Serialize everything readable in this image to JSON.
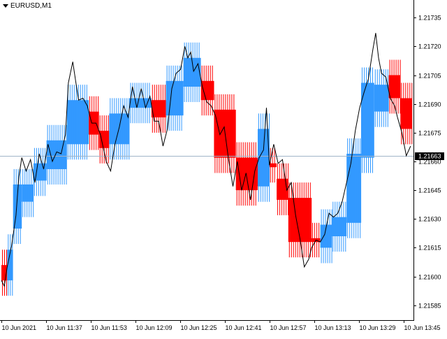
{
  "window": {
    "symbol_label": "EURUSD,M1",
    "menu_icon": "triangle-down-icon"
  },
  "colors": {
    "up": "#3399ff",
    "down": "#ff0000",
    "price_line": "#000000",
    "current_line": "#a0b4c8",
    "background": "#ffffff",
    "axis": "#000000"
  },
  "current_price": {
    "value": 1.21663,
    "label": "1.21663"
  },
  "price_axis": {
    "ticks": [
      1.21735,
      1.2172,
      1.21705,
      1.2169,
      1.21675,
      1.2166,
      1.21645,
      1.2163,
      1.21615,
      1.216,
      1.21585
    ],
    "tick_labels": [
      "1.21735",
      "1.21720",
      "1.21705",
      "1.21690",
      "1.21675",
      "1.21660",
      "1.21645",
      "1.21630",
      "1.21615",
      "1.21600",
      "1.21585"
    ]
  },
  "time_axis": {
    "labels": [
      "10 Jun 2021",
      "10 Jun 11:37",
      "10 Jun 11:53",
      "10 Jun 12:09",
      "10 Jun 12:25",
      "10 Jun 12:41",
      "10 Jun 12:57",
      "10 Jun 13:13",
      "10 Jun 13:29",
      "10 Jun 13:45"
    ]
  },
  "chart_data": {
    "type": "line",
    "x_unit": "bar index (1-minute bars)",
    "y_unit": "EURUSD price",
    "ylim": [
      1.21578,
      1.21742
    ],
    "renko_blocks": [
      {
        "from": 0,
        "to": 4,
        "open": 1.21606,
        "close": 1.21598,
        "dir": "down"
      },
      {
        "from": 4,
        "to": 8,
        "open": 1.21598,
        "close": 1.21614,
        "dir": "up"
      },
      {
        "from": 8,
        "to": 14,
        "open": 1.21625,
        "close": 1.21648,
        "dir": "up"
      },
      {
        "from": 14,
        "to": 22,
        "open": 1.21639,
        "close": 1.21648,
        "dir": "up"
      },
      {
        "from": 22,
        "to": 31,
        "open": 1.2165,
        "close": 1.21659,
        "dir": "up"
      },
      {
        "from": 31,
        "to": 45,
        "open": 1.21656,
        "close": 1.21671,
        "dir": "up"
      },
      {
        "from": 45,
        "to": 60,
        "open": 1.21669,
        "close": 1.21692,
        "dir": "up"
      },
      {
        "from": 60,
        "to": 67,
        "open": 1.21686,
        "close": 1.21674,
        "dir": "down"
      },
      {
        "from": 67,
        "to": 74,
        "open": 1.21676,
        "close": 1.21667,
        "dir": "down"
      },
      {
        "from": 74,
        "to": 88,
        "open": 1.21669,
        "close": 1.21685,
        "dir": "up"
      },
      {
        "from": 88,
        "to": 103,
        "open": 1.21688,
        "close": 1.21693,
        "dir": "up"
      },
      {
        "from": 103,
        "to": 113,
        "open": 1.21692,
        "close": 1.21683,
        "dir": "down"
      },
      {
        "from": 113,
        "to": 125,
        "open": 1.21684,
        "close": 1.21702,
        "dir": "up"
      },
      {
        "from": 125,
        "to": 137,
        "open": 1.21699,
        "close": 1.21714,
        "dir": "up"
      },
      {
        "from": 137,
        "to": 146,
        "open": 1.21702,
        "close": 1.21692,
        "dir": "down"
      },
      {
        "from": 146,
        "to": 161,
        "open": 1.21687,
        "close": 1.21662,
        "dir": "down"
      },
      {
        "from": 161,
        "to": 176,
        "open": 1.21662,
        "close": 1.21645,
        "dir": "down"
      },
      {
        "from": 176,
        "to": 184,
        "open": 1.21647,
        "close": 1.21677,
        "dir": "up"
      },
      {
        "from": 184,
        "to": 189,
        "open": 1.21659,
        "close": 1.21657,
        "dir": "down"
      },
      {
        "from": 189,
        "to": 197,
        "open": 1.21651,
        "close": 1.2164,
        "dir": "down"
      },
      {
        "from": 197,
        "to": 213,
        "open": 1.21641,
        "close": 1.21618,
        "dir": "down"
      },
      {
        "from": 213,
        "to": 219,
        "open": 1.2162,
        "close": 1.21618,
        "dir": "down"
      },
      {
        "from": 219,
        "to": 227,
        "open": 1.21615,
        "close": 1.21627,
        "dir": "up"
      },
      {
        "from": 227,
        "to": 237,
        "open": 1.21621,
        "close": 1.21631,
        "dir": "up"
      },
      {
        "from": 237,
        "to": 247,
        "open": 1.21628,
        "close": 1.21664,
        "dir": "up"
      },
      {
        "from": 247,
        "to": 256,
        "open": 1.21662,
        "close": 1.21701,
        "dir": "up"
      },
      {
        "from": 256,
        "to": 266,
        "open": 1.21686,
        "close": 1.217,
        "dir": "up"
      },
      {
        "from": 266,
        "to": 274,
        "open": 1.21705,
        "close": 1.21693,
        "dir": "down"
      },
      {
        "from": 274,
        "to": 282,
        "open": 1.21693,
        "close": 1.21677,
        "dir": "down"
      }
    ],
    "price_line": [
      {
        "x": 0,
        "y": 1.21598
      },
      {
        "x": 2,
        "y": 1.21595
      },
      {
        "x": 4,
        "y": 1.21605
      },
      {
        "x": 7,
        "y": 1.21616
      },
      {
        "x": 10,
        "y": 1.21632
      },
      {
        "x": 12,
        "y": 1.21652
      },
      {
        "x": 14,
        "y": 1.21662
      },
      {
        "x": 17,
        "y": 1.21655
      },
      {
        "x": 20,
        "y": 1.21661
      },
      {
        "x": 23,
        "y": 1.21649
      },
      {
        "x": 26,
        "y": 1.21664
      },
      {
        "x": 29,
        "y": 1.21656
      },
      {
        "x": 32,
        "y": 1.21669
      },
      {
        "x": 35,
        "y": 1.2166
      },
      {
        "x": 38,
        "y": 1.21665
      },
      {
        "x": 41,
        "y": 1.21664
      },
      {
        "x": 44,
        "y": 1.21674
      },
      {
        "x": 46,
        "y": 1.21701
      },
      {
        "x": 49,
        "y": 1.21712
      },
      {
        "x": 51,
        "y": 1.21702
      },
      {
        "x": 53,
        "y": 1.21692
      },
      {
        "x": 56,
        "y": 1.21693
      },
      {
        "x": 59,
        "y": 1.21689
      },
      {
        "x": 62,
        "y": 1.2168
      },
      {
        "x": 65,
        "y": 1.2168
      },
      {
        "x": 68,
        "y": 1.21674
      },
      {
        "x": 72,
        "y": 1.2166
      },
      {
        "x": 75,
        "y": 1.21655
      },
      {
        "x": 78,
        "y": 1.21669
      },
      {
        "x": 81,
        "y": 1.21678
      },
      {
        "x": 84,
        "y": 1.21689
      },
      {
        "x": 87,
        "y": 1.21683
      },
      {
        "x": 90,
        "y": 1.21699
      },
      {
        "x": 93,
        "y": 1.21688
      },
      {
        "x": 96,
        "y": 1.21698
      },
      {
        "x": 99,
        "y": 1.21688
      },
      {
        "x": 102,
        "y": 1.21694
      },
      {
        "x": 105,
        "y": 1.21681
      },
      {
        "x": 108,
        "y": 1.21681
      },
      {
        "x": 111,
        "y": 1.21668
      },
      {
        "x": 114,
        "y": 1.21677
      },
      {
        "x": 117,
        "y": 1.21698
      },
      {
        "x": 120,
        "y": 1.21706
      },
      {
        "x": 123,
        "y": 1.21708
      },
      {
        "x": 126,
        "y": 1.2172
      },
      {
        "x": 128,
        "y": 1.21714
      },
      {
        "x": 130,
        "y": 1.21717
      },
      {
        "x": 132,
        "y": 1.21707
      },
      {
        "x": 135,
        "y": 1.21711
      },
      {
        "x": 138,
        "y": 1.21699
      },
      {
        "x": 141,
        "y": 1.21691
      },
      {
        "x": 144,
        "y": 1.21689
      },
      {
        "x": 147,
        "y": 1.21684
      },
      {
        "x": 150,
        "y": 1.21674
      },
      {
        "x": 153,
        "y": 1.21678
      },
      {
        "x": 156,
        "y": 1.21661
      },
      {
        "x": 159,
        "y": 1.21647
      },
      {
        "x": 162,
        "y": 1.2166
      },
      {
        "x": 165,
        "y": 1.21645
      },
      {
        "x": 168,
        "y": 1.21654
      },
      {
        "x": 171,
        "y": 1.2164
      },
      {
        "x": 174,
        "y": 1.21655
      },
      {
        "x": 177,
        "y": 1.21662
      },
      {
        "x": 180,
        "y": 1.21666
      },
      {
        "x": 182,
        "y": 1.21688
      },
      {
        "x": 184,
        "y": 1.21658
      },
      {
        "x": 187,
        "y": 1.21669
      },
      {
        "x": 190,
        "y": 1.21659
      },
      {
        "x": 193,
        "y": 1.21661
      },
      {
        "x": 196,
        "y": 1.21645
      },
      {
        "x": 199,
        "y": 1.21649
      },
      {
        "x": 202,
        "y": 1.21632
      },
      {
        "x": 205,
        "y": 1.2162
      },
      {
        "x": 208,
        "y": 1.21605
      },
      {
        "x": 211,
        "y": 1.21609
      },
      {
        "x": 213,
        "y": 1.21615
      },
      {
        "x": 216,
        "y": 1.21619
      },
      {
        "x": 219,
        "y": 1.21618
      },
      {
        "x": 222,
        "y": 1.21622
      },
      {
        "x": 225,
        "y": 1.21633
      },
      {
        "x": 228,
        "y": 1.21631
      },
      {
        "x": 231,
        "y": 1.21633
      },
      {
        "x": 234,
        "y": 1.21639
      },
      {
        "x": 237,
        "y": 1.21649
      },
      {
        "x": 240,
        "y": 1.21659
      },
      {
        "x": 243,
        "y": 1.21676
      },
      {
        "x": 246,
        "y": 1.21688
      },
      {
        "x": 249,
        "y": 1.21696
      },
      {
        "x": 252,
        "y": 1.21703
      },
      {
        "x": 255,
        "y": 1.21718
      },
      {
        "x": 257,
        "y": 1.21727
      },
      {
        "x": 259,
        "y": 1.21714
      },
      {
        "x": 261,
        "y": 1.21706
      },
      {
        "x": 264,
        "y": 1.21704
      },
      {
        "x": 267,
        "y": 1.21693
      },
      {
        "x": 270,
        "y": 1.21689
      },
      {
        "x": 272,
        "y": 1.21683
      },
      {
        "x": 275,
        "y": 1.21675
      },
      {
        "x": 278,
        "y": 1.21663
      },
      {
        "x": 281,
        "y": 1.21668
      }
    ]
  }
}
